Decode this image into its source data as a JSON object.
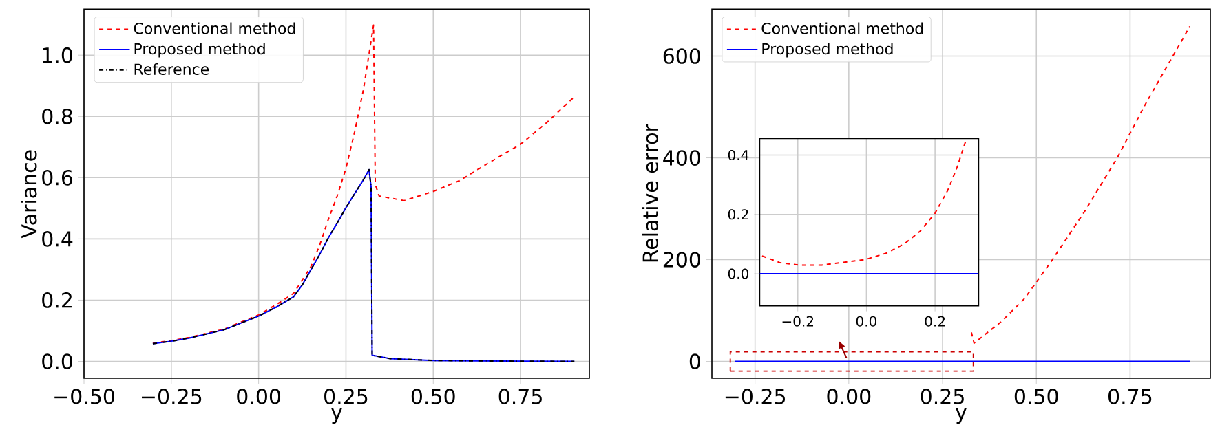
{
  "chart_data": [
    {
      "type": "line",
      "xlabel": "y",
      "ylabel": "Variance",
      "xlim": [
        -0.5,
        0.947
      ],
      "ylim": [
        -0.055,
        1.15
      ],
      "xticks": [
        {
          "value": -0.5,
          "label": "−0.50"
        },
        {
          "value": -0.25,
          "label": "−0.25"
        },
        {
          "value": 0,
          "label": "0.00"
        },
        {
          "value": 0.25,
          "label": "0.25"
        },
        {
          "value": 0.5,
          "label": "0.50"
        },
        {
          "value": 0.75,
          "label": "0.75"
        }
      ],
      "yticks": [
        {
          "value": 0,
          "label": "0.0"
        },
        {
          "value": 0.2,
          "label": "0.2"
        },
        {
          "value": 0.4,
          "label": "0.4"
        },
        {
          "value": 0.6,
          "label": "0.6"
        },
        {
          "value": 0.8,
          "label": "0.8"
        },
        {
          "value": 1.0,
          "label": "1.0"
        }
      ],
      "grid": true,
      "legend": "top left",
      "marker": "none",
      "series": [
        {
          "name": "Conventional method",
          "color": "#ff0000",
          "line_style": "dashed",
          "x": [
            -0.303,
            -0.25,
            -0.2,
            -0.1,
            0,
            0.05,
            0.1,
            0.15,
            0.175,
            0.2,
            0.225,
            0.25,
            0.275,
            0.3,
            0.329,
            0.334,
            0.345,
            0.417,
            0.5,
            0.575,
            0.654,
            0.75,
            0.825,
            0.904
          ],
          "values": [
            0.06,
            0.068,
            0.078,
            0.105,
            0.152,
            0.185,
            0.222,
            0.31,
            0.38,
            0.465,
            0.54,
            0.63,
            0.75,
            0.887,
            1.098,
            0.578,
            0.54,
            0.525,
            0.555,
            0.59,
            0.645,
            0.709,
            0.78,
            0.864
          ]
        },
        {
          "name": "Proposed method",
          "color": "#0000ff",
          "line_style": "solid",
          "x": [
            -0.303,
            -0.25,
            -0.2,
            -0.1,
            0,
            0.05,
            0.1,
            0.125,
            0.15,
            0.175,
            0.2,
            0.225,
            0.25,
            0.275,
            0.3,
            0.316,
            0.322,
            0.325,
            0.377,
            0.5,
            0.7,
            0.904
          ],
          "values": [
            0.058,
            0.066,
            0.076,
            0.103,
            0.148,
            0.177,
            0.211,
            0.25,
            0.3,
            0.35,
            0.404,
            0.452,
            0.502,
            0.548,
            0.593,
            0.626,
            0.57,
            0.02,
            0.009,
            0.003,
            0.001,
            0.0
          ]
        },
        {
          "name": "Reference",
          "color": "#000000",
          "line_style": "dashdot",
          "x": [
            -0.303,
            -0.25,
            -0.2,
            -0.1,
            0,
            0.05,
            0.1,
            0.125,
            0.15,
            0.175,
            0.2,
            0.225,
            0.25,
            0.275,
            0.3,
            0.316,
            0.322,
            0.325,
            0.377,
            0.5,
            0.7,
            0.904
          ],
          "values": [
            0.058,
            0.066,
            0.076,
            0.103,
            0.148,
            0.177,
            0.211,
            0.25,
            0.3,
            0.35,
            0.404,
            0.452,
            0.502,
            0.548,
            0.593,
            0.626,
            0.57,
            0.02,
            0.009,
            0.003,
            0.001,
            0.0
          ]
        }
      ]
    },
    {
      "type": "line",
      "xlabel": "y",
      "ylabel": "Relative error",
      "xlim": [
        -0.365,
        0.964
      ],
      "ylim": [
        -33,
        692
      ],
      "xticks": [
        {
          "value": -0.25,
          "label": "−0.25"
        },
        {
          "value": 0,
          "label": "0.00"
        },
        {
          "value": 0.25,
          "label": "0.25"
        },
        {
          "value": 0.5,
          "label": "0.50"
        },
        {
          "value": 0.75,
          "label": "0.75"
        }
      ],
      "yticks": [
        0,
        200,
        400,
        600
      ],
      "grid": true,
      "legend": "top left",
      "marker": "none",
      "series": [
        {
          "name": "Conventional method",
          "color": "#ff0000",
          "line_style": "dashed",
          "x": [
            0.327,
            0.334,
            0.408,
            0.469,
            0.543,
            0.629,
            0.715,
            0.789,
            0.909
          ],
          "values": [
            57,
            36,
            79,
            124,
            200,
            295,
            399,
            503,
            658
          ]
        },
        {
          "name": "Proposed method",
          "color": "#0000ff",
          "line_style": "solid",
          "x": [
            -0.304,
            0.909
          ],
          "values": [
            0,
            0
          ]
        }
      ]
    },
    {
      "type": "line",
      "xlim": [
        -0.311,
        0.327
      ],
      "ylim": [
        -0.108,
        0.456
      ],
      "xticks": [
        {
          "value": -0.2,
          "label": "−0.2"
        },
        {
          "value": 0,
          "label": "0.0"
        },
        {
          "value": 0.2,
          "label": "0.2"
        }
      ],
      "yticks": [
        {
          "value": 0,
          "label": "0.0"
        },
        {
          "value": 0.2,
          "label": "0.2"
        },
        {
          "value": 0.4,
          "label": "0.4"
        }
      ],
      "grid": true,
      "marker": "none",
      "series": [
        {
          "color": "#ff0000",
          "line_style": "dashed",
          "x": [
            -0.304,
            -0.251,
            -0.197,
            -0.13,
            -0.063,
            -0.003,
            0.057,
            0.11,
            0.157,
            0.2,
            0.237,
            0.264,
            0.29
          ],
          "values": [
            0.06,
            0.037,
            0.029,
            0.029,
            0.039,
            0.048,
            0.069,
            0.1,
            0.144,
            0.204,
            0.281,
            0.358,
            0.45
          ]
        },
        {
          "color": "#0000ff",
          "line_style": "solid",
          "x": [
            -0.311,
            0.327
          ],
          "values": [
            0,
            0
          ]
        }
      ]
    }
  ]
}
